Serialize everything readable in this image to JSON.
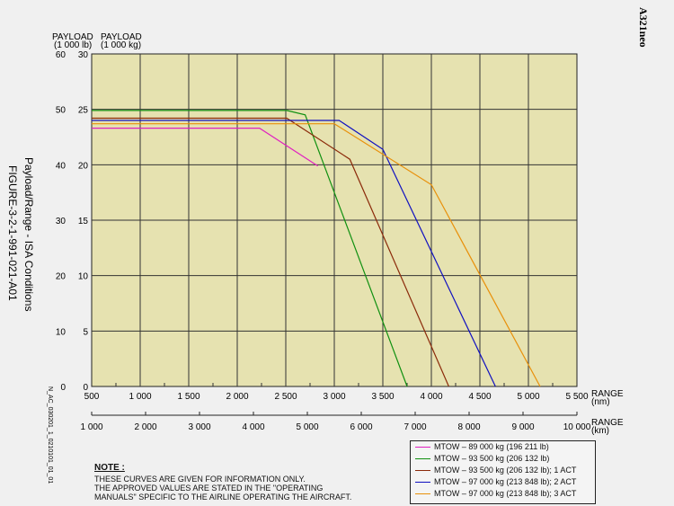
{
  "header": {
    "aircraft": "A321neo",
    "figure_title": "Payload/Range - ISA Conditions",
    "figure_id": "FIGURE-3-2-1-991-021-A01",
    "doc_ref": "N_AC_030201_1_0210101_01_01"
  },
  "note": {
    "title": "NOTE :",
    "lines": [
      "THESE CURVES ARE GIVEN FOR INFORMATION ONLY.",
      "THE APPROVED VALUES ARE STATED IN THE \"OPERATING",
      "MANUALS\" SPECIFIC TO THE AIRLINE OPERATING THE AIRCRAFT."
    ]
  },
  "chart_data": {
    "type": "line",
    "y_left_label_1": "PAYLOAD",
    "y_left_label_2": "(1 000 lb)",
    "y_right_label_1": "PAYLOAD",
    "y_right_label_2": "(1 000 kg)",
    "x_label_nm_1": "RANGE",
    "x_label_nm_2": "(nm)",
    "x_label_km_1": "RANGE",
    "x_label_km_2": "(km)",
    "xlim_nm": [
      500,
      5500
    ],
    "ylim_kg": [
      0,
      30
    ],
    "x_ticks_nm": [
      "500",
      "1 000",
      "1 500",
      "2 000",
      "2 500",
      "3 000",
      "3 500",
      "4 000",
      "4 500",
      "5 000",
      "5 500"
    ],
    "x_ticks_km": [
      "1 000",
      "2 000",
      "3 000",
      "4 000",
      "5 000",
      "6 000",
      "7 000",
      "8 000",
      "9 000",
      "10 000"
    ],
    "y_ticks_kg": [
      "0",
      "5",
      "10",
      "15",
      "20",
      "25",
      "30"
    ],
    "y_ticks_lb": [
      "0",
      "10",
      "20",
      "30",
      "40",
      "50",
      "60"
    ],
    "grid": true,
    "plot_background": "#e6e2b0",
    "series": [
      {
        "name": "MTOW – 89 000 kg (196 211 lb)",
        "color": "#e020c0",
        "x": [
          500,
          2230,
          2830
        ],
        "y": [
          23.3,
          23.3,
          19.9
        ]
      },
      {
        "name": "MTOW – 93 500 kg (206 132 lb)",
        "color": "#109010",
        "x": [
          500,
          2510,
          2700,
          3750
        ],
        "y": [
          24.9,
          24.9,
          24.5,
          0
        ]
      },
      {
        "name": "MTOW – 93 500 kg (206 132 lb); 1 ACT",
        "color": "#8b2a0a",
        "x": [
          500,
          2510,
          3160,
          4180
        ],
        "y": [
          24.2,
          24.2,
          20.5,
          0
        ]
      },
      {
        "name": "MTOW – 97 000 kg (213 848 lb); 2 ACT",
        "color": "#1010c0",
        "x": [
          500,
          3050,
          3500,
          4660
        ],
        "y": [
          24.0,
          24.0,
          21.4,
          0
        ]
      },
      {
        "name": "MTOW – 97 000 kg (213 848 lb); 3 ACT",
        "color": "#e8900a",
        "x": [
          500,
          3000,
          4000,
          5120
        ],
        "y": [
          23.7,
          23.7,
          18.2,
          0
        ]
      }
    ]
  }
}
